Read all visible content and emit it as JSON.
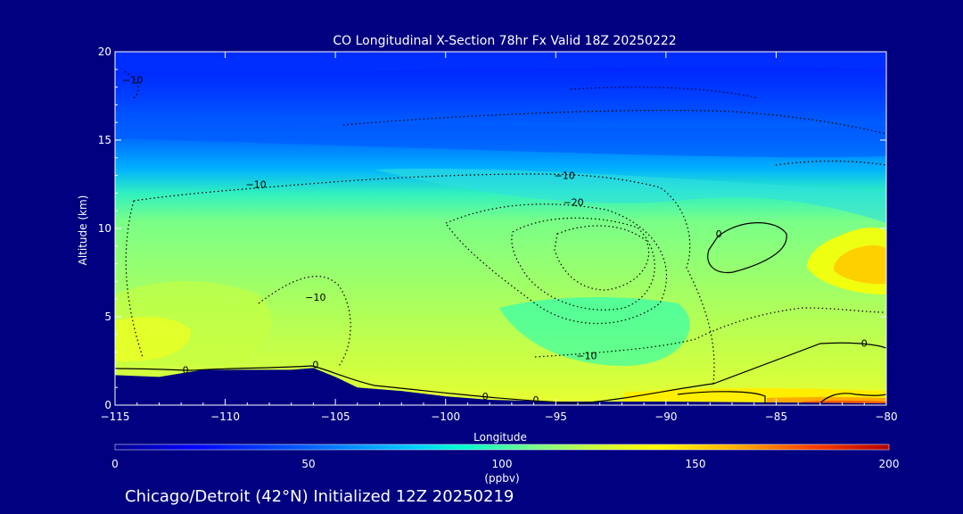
{
  "chart_data": {
    "type": "heatmap",
    "title": "CO Longitudinal X-Section 78hr  Fx Valid 18Z 20250222",
    "xlabel": "Longitude",
    "ylabel": "Altitude (km)",
    "xlim": [
      -115,
      -80
    ],
    "ylim": [
      0,
      20
    ],
    "x_ticks": [
      -115,
      -110,
      -105,
      -100,
      -95,
      -90,
      -85,
      -80
    ],
    "x_tick_labels": [
      "−115",
      "−110",
      "−105",
      "−100",
      "−95",
      "−90",
      "−85",
      "−80"
    ],
    "y_ticks": [
      0,
      5,
      10,
      15,
      20
    ],
    "y_tick_labels": [
      "0",
      "5",
      "10",
      "15",
      "20"
    ],
    "colorbar": {
      "min": 0,
      "max": 200,
      "ticks": [
        0,
        50,
        100,
        150,
        200
      ],
      "tick_labels": [
        "0",
        "50",
        "100",
        "150",
        "200"
      ],
      "unit_label": "(ppbv)",
      "colors": [
        "#00008c",
        "#0000ff",
        "#0060ff",
        "#00c8ff",
        "#00ffd0",
        "#80ff80",
        "#d0ff30",
        "#ffff00",
        "#ffb000",
        "#ff4000",
        "#b00000"
      ]
    },
    "terrain_km": [
      [
        -115,
        1.7
      ],
      [
        -113,
        1.6
      ],
      [
        -111,
        2.0
      ],
      [
        -109,
        2.0
      ],
      [
        -107,
        2.0
      ],
      [
        -106,
        2.1
      ],
      [
        -105,
        1.6
      ],
      [
        -104,
        1.0
      ],
      [
        -102,
        0.8
      ],
      [
        -100,
        0.5
      ],
      [
        -98,
        0.3
      ],
      [
        -95,
        0.2
      ],
      [
        -90,
        0.2
      ],
      [
        -85,
        0.15
      ],
      [
        -80,
        0.1
      ]
    ],
    "contour_labels": [
      {
        "text": "0",
        "lon": -111.8,
        "alt": 2.0
      },
      {
        "text": "0",
        "lon": -105.9,
        "alt": 2.3
      },
      {
        "text": "0",
        "lon": -98.2,
        "alt": 0.5
      },
      {
        "text": "0",
        "lon": -95.9,
        "alt": 0.3
      },
      {
        "text": "0",
        "lon": -87.6,
        "alt": 9.7
      },
      {
        "text": "0",
        "lon": -81.0,
        "alt": 3.5
      },
      {
        "text": "−10",
        "lon": -108.6,
        "alt": 12.5
      },
      {
        "text": "−10",
        "lon": -105.9,
        "alt": 6.1
      },
      {
        "text": "−10",
        "lon": -94.6,
        "alt": 13.0
      },
      {
        "text": "−10",
        "lon": -93.6,
        "alt": 2.8
      },
      {
        "text": "−10",
        "lon": -114.2,
        "alt": 18.4
      },
      {
        "text": "−20",
        "lon": -94.2,
        "alt": 11.5
      }
    ],
    "annotation": "Chicago/Detroit (42°N) Initialized 12Z 20250219"
  }
}
